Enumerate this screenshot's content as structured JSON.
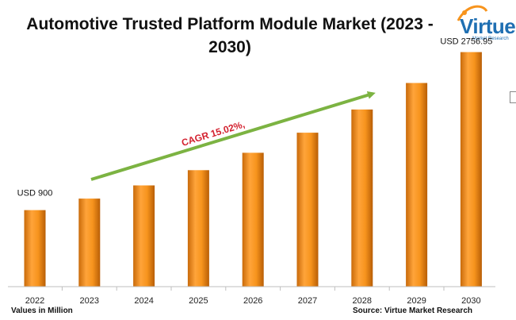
{
  "chart_data": {
    "type": "bar",
    "title": "Automotive Trusted Platform Module Market (2023 - 2030)",
    "categories": [
      "2022",
      "2023",
      "2024",
      "2025",
      "2026",
      "2027",
      "2028",
      "2029",
      "2030"
    ],
    "values": [
      900,
      1035,
      1190,
      1369,
      1574,
      1810,
      2082,
      2394,
      2756.95
    ],
    "data_labels": [
      {
        "index": 0,
        "text": "USD 900"
      },
      {
        "index": 8,
        "text": "USD 2756.95"
      }
    ],
    "annotation": "CAGR 15.02%,",
    "xlabel": "",
    "ylabel": "",
    "ylim": [
      0,
      2800
    ],
    "grid": false,
    "legend": "none",
    "bar_color": "#f7941d",
    "arrow_color": "#7cb342",
    "annotation_color": "#d3202e"
  },
  "footer": {
    "values_note": "Values in Million",
    "source": "Source: Virtue Market Research"
  },
  "logo": {
    "name": "Virtue",
    "tagline": "Market Research"
  }
}
